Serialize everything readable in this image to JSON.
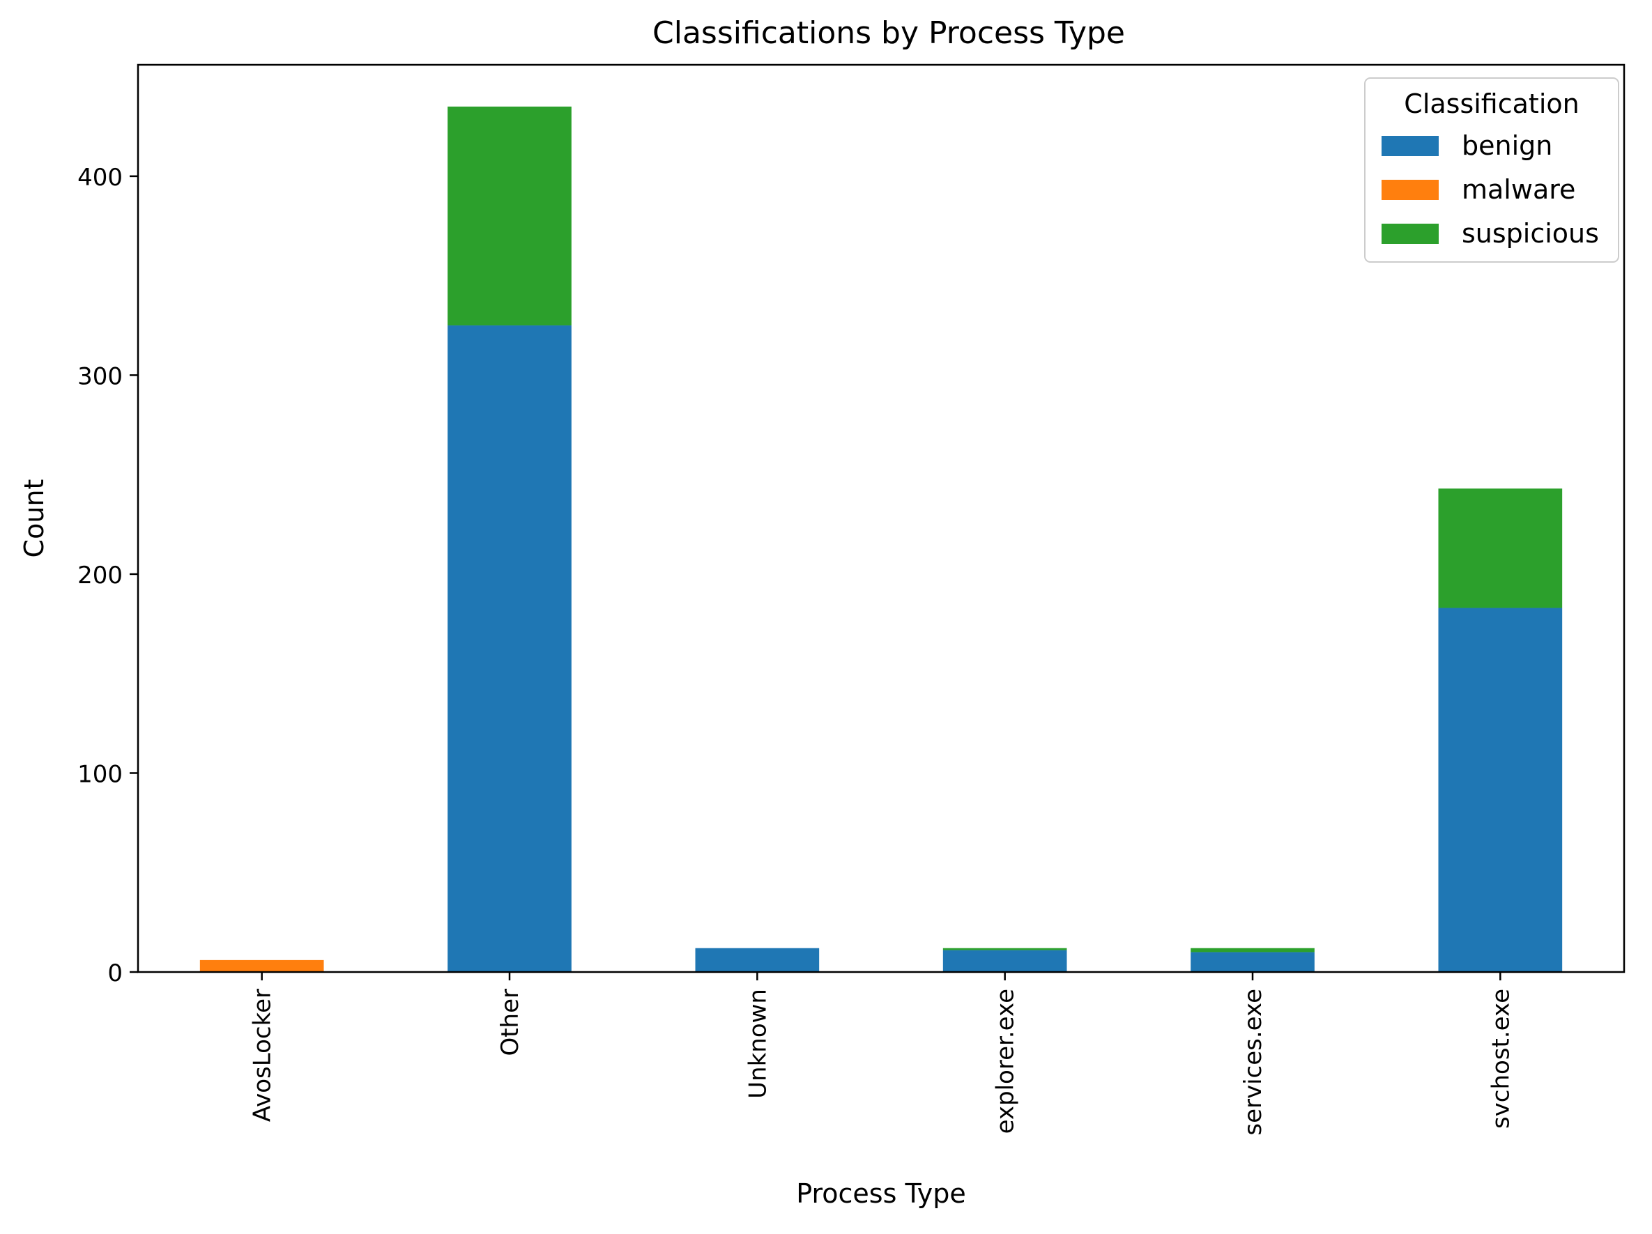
{
  "chart_data": {
    "type": "bar",
    "stacked": true,
    "title": "Classifications by Process Type",
    "xlabel": "Process Type",
    "ylabel": "Count",
    "categories": [
      "AvosLocker",
      "Other",
      "Unknown",
      "explorer.exe",
      "services.exe",
      "svchost.exe"
    ],
    "series": [
      {
        "name": "benign",
        "color": "#1f77b4",
        "values": [
          0,
          325,
          12,
          11,
          10,
          183
        ]
      },
      {
        "name": "malware",
        "color": "#ff7f0e",
        "values": [
          6,
          0,
          0,
          0,
          0,
          0
        ]
      },
      {
        "name": "suspicious",
        "color": "#2ca02c",
        "values": [
          0,
          110,
          0,
          1,
          2,
          60
        ]
      }
    ],
    "ylim": [
      0,
      456
    ],
    "yticks": [
      0,
      100,
      200,
      300,
      400
    ],
    "grid": false,
    "legend": {
      "title": "Classification",
      "position": "top-right"
    },
    "tick_label_rotation": "vertical"
  }
}
